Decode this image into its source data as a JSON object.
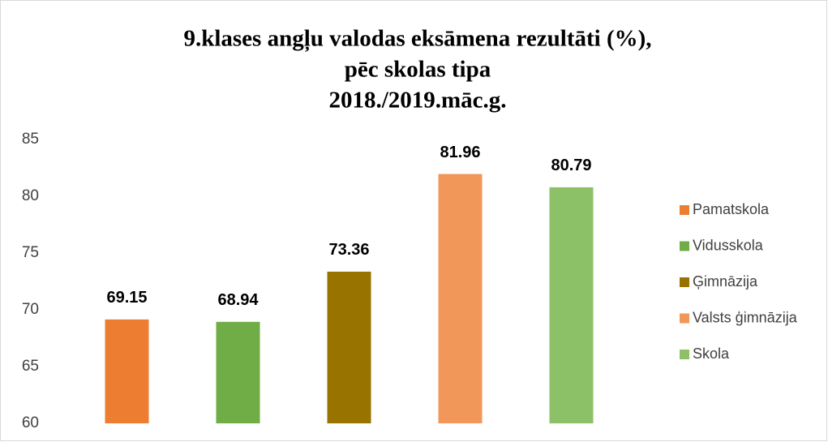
{
  "chart_data": {
    "type": "bar",
    "title": [
      "9.klases angļu valodas eksāmena rezultāti (%),",
      "pēc skolas tipa",
      "2018./2019.māc.g."
    ],
    "series": [
      {
        "name": "Pamatskola",
        "color": "#ed7d31",
        "values": [
          69.15
        ]
      },
      {
        "name": "Vidusskola",
        "color": "#70ad47",
        "values": [
          68.94
        ]
      },
      {
        "name": "Ģimnāzija",
        "color": "#997300",
        "values": [
          73.36
        ]
      },
      {
        "name": "Valsts ģimnāzija",
        "color": "#f1975a",
        "values": [
          81.96
        ]
      },
      {
        "name": "Skola",
        "color": "#8cc168",
        "values": [
          80.79
        ]
      }
    ],
    "ylim": [
      60,
      85
    ],
    "yticks": [
      60,
      65,
      70,
      75,
      80,
      85
    ],
    "grid": false,
    "legend": "right"
  }
}
